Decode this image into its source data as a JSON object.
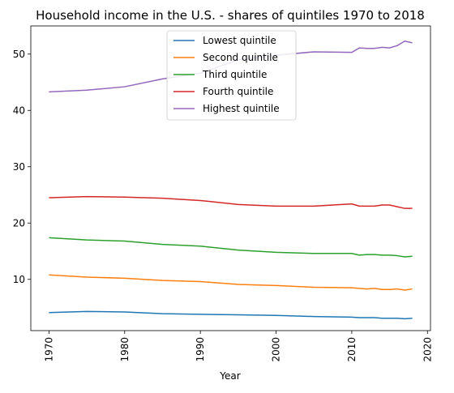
{
  "chart_data": {
    "type": "line",
    "title": "Household income in the U.S. - shares of quintiles 1970 to 2018",
    "xlabel": "Year",
    "ylabel": "",
    "xlim": [
      1967.6,
      2020.4
    ],
    "ylim": [
      0.9,
      55.0
    ],
    "xticks": [
      1970,
      1980,
      1990,
      2000,
      2010,
      2020
    ],
    "yticks": [
      10,
      20,
      30,
      40,
      50
    ],
    "legend_position": "top-center",
    "grid": false,
    "x": [
      1970,
      1975,
      1980,
      1985,
      1990,
      1995,
      2000,
      2005,
      2010,
      2011,
      2012,
      2013,
      2014,
      2015,
      2016,
      2017,
      2018
    ],
    "series": [
      {
        "name": "Lowest quintile",
        "color": "#1f77b4",
        "values": [
          4.1,
          4.3,
          4.2,
          3.9,
          3.8,
          3.7,
          3.6,
          3.4,
          3.3,
          3.2,
          3.2,
          3.2,
          3.1,
          3.1,
          3.1,
          3.0,
          3.1
        ]
      },
      {
        "name": "Second quintile",
        "color": "#ff7f0e",
        "values": [
          10.8,
          10.4,
          10.2,
          9.8,
          9.6,
          9.1,
          8.9,
          8.6,
          8.5,
          8.4,
          8.3,
          8.4,
          8.2,
          8.2,
          8.3,
          8.1,
          8.3
        ]
      },
      {
        "name": "Third quintile",
        "color": "#2ca02c",
        "values": [
          17.4,
          17.0,
          16.8,
          16.2,
          15.9,
          15.2,
          14.8,
          14.6,
          14.6,
          14.3,
          14.4,
          14.4,
          14.3,
          14.3,
          14.2,
          14.0,
          14.1
        ]
      },
      {
        "name": "Fourth quintile",
        "color": "#d62728",
        "values": [
          24.5,
          24.7,
          24.6,
          24.4,
          24.0,
          23.3,
          23.0,
          23.0,
          23.4,
          23.0,
          23.0,
          23.0,
          23.2,
          23.2,
          22.9,
          22.6,
          22.6
        ]
      },
      {
        "name": "Highest quintile",
        "color": "#9467bd",
        "values": [
          43.3,
          43.6,
          44.2,
          45.6,
          46.6,
          49.0,
          49.8,
          50.4,
          50.3,
          51.1,
          51.0,
          51.0,
          51.2,
          51.1,
          51.5,
          52.3,
          52.0
        ]
      }
    ]
  }
}
